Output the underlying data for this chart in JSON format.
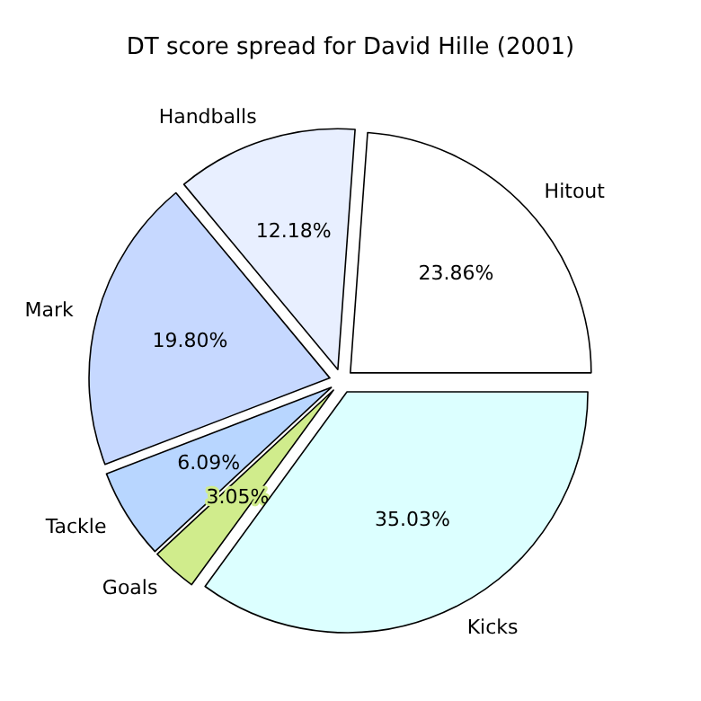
{
  "chart_data": {
    "type": "pie",
    "title": "DT score spread for David Hille (2001)",
    "categories": [
      "Hitout",
      "Handballs",
      "Mark",
      "Tackle",
      "Goals",
      "Kicks"
    ],
    "values": [
      23.86,
      12.18,
      19.8,
      6.09,
      3.05,
      35.03
    ],
    "colors": [
      "#ffffff",
      "#e8efff",
      "#c6d8ff",
      "#b8d6ff",
      "#d0ec8c",
      "#dcffff"
    ],
    "value_labels": [
      "23.86%",
      "12.18%",
      "19.80%",
      "6.09%",
      "3.05%",
      "35.03%"
    ]
  }
}
